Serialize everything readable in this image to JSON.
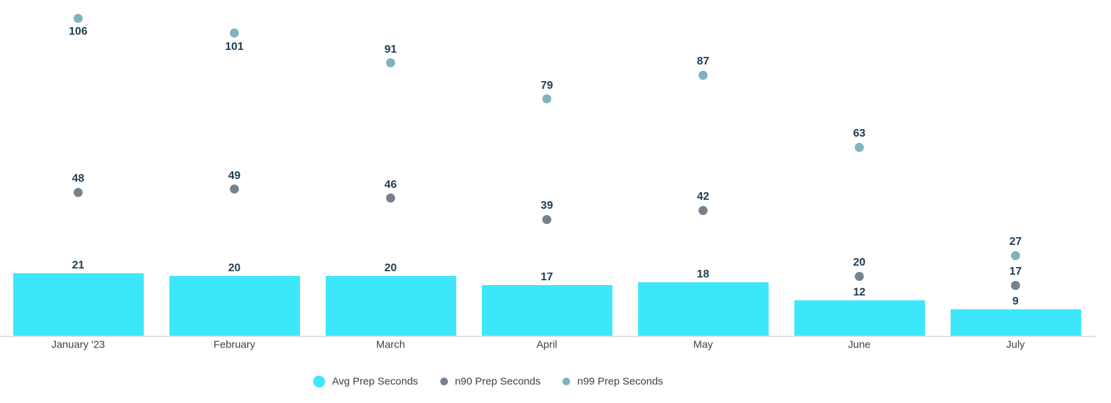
{
  "chart_data": {
    "type": "bar",
    "subtype": "combo-bar-with-point-series",
    "title": "",
    "xlabel": "",
    "ylabel": "",
    "ylim": [
      0,
      110
    ],
    "grid": false,
    "legend_position": "bottom-center",
    "value_labels": true,
    "categories": [
      "January '23",
      "February",
      "March",
      "April",
      "May",
      "June",
      "July"
    ],
    "series": [
      {
        "name": "Avg Prep Seconds",
        "render": "bar",
        "color": "#3DE7FA",
        "values": [
          21,
          20,
          20,
          17,
          18,
          12,
          9
        ]
      },
      {
        "name": "n90 Prep Seconds",
        "render": "point",
        "color": "#75828D",
        "values": [
          48,
          49,
          46,
          39,
          42,
          20,
          17
        ]
      },
      {
        "name": "n99 Prep Seconds",
        "render": "point",
        "color": "#7FB3BE",
        "values": [
          106,
          101,
          91,
          79,
          87,
          63,
          27
        ]
      }
    ],
    "colors": {
      "value_label": "#1E3D52",
      "category_label": "#3C4043",
      "legend_label": "#3C4043",
      "axis_line": "#DEE1E8",
      "background": "#FFFFFF"
    }
  }
}
